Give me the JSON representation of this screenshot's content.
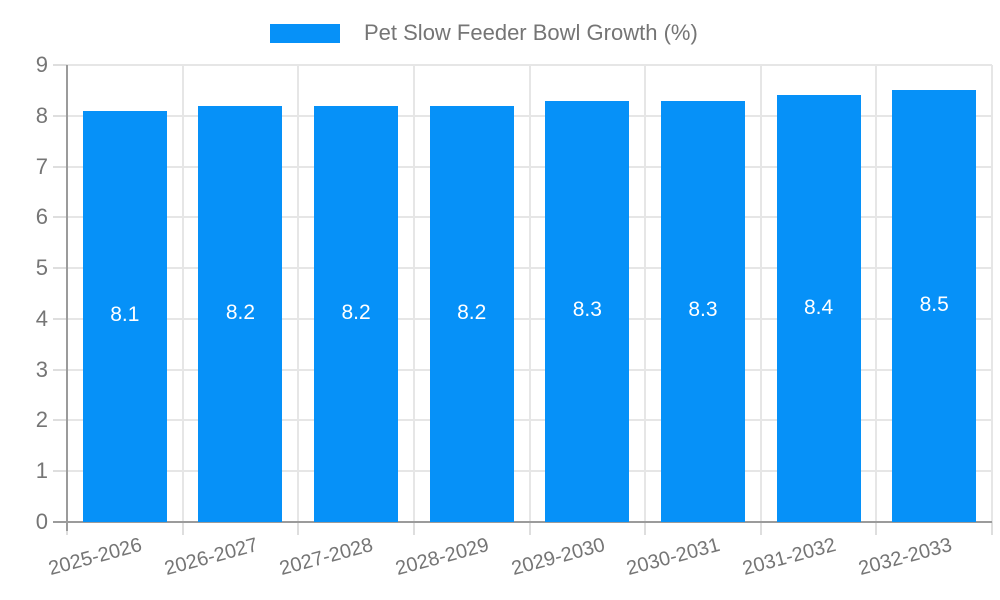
{
  "chart_data": {
    "type": "bar",
    "title": "Pet Slow Feeder Bowl Growth (%)",
    "categories": [
      "2025-2026",
      "2026-2027",
      "2027-2028",
      "2028-2029",
      "2029-2030",
      "2030-2031",
      "2031-2032",
      "2032-2033"
    ],
    "values": [
      8.1,
      8.2,
      8.2,
      8.2,
      8.3,
      8.3,
      8.4,
      8.5
    ],
    "ytick_labels": [
      "0",
      "1",
      "2",
      "3",
      "4",
      "5",
      "6",
      "7",
      "8",
      "9"
    ],
    "ylim": [
      0,
      9
    ],
    "ytick_step": 1,
    "grid": "on",
    "legend_position": "top",
    "xlabel": "",
    "ylabel": "",
    "colors": {
      "bar": "#0691f8",
      "bar_value_text": "#ffffff",
      "axis_line": "#9b9b9b",
      "gridline": "#e6e6e6",
      "tick": "#dedede",
      "axis_text": "#757575"
    }
  }
}
